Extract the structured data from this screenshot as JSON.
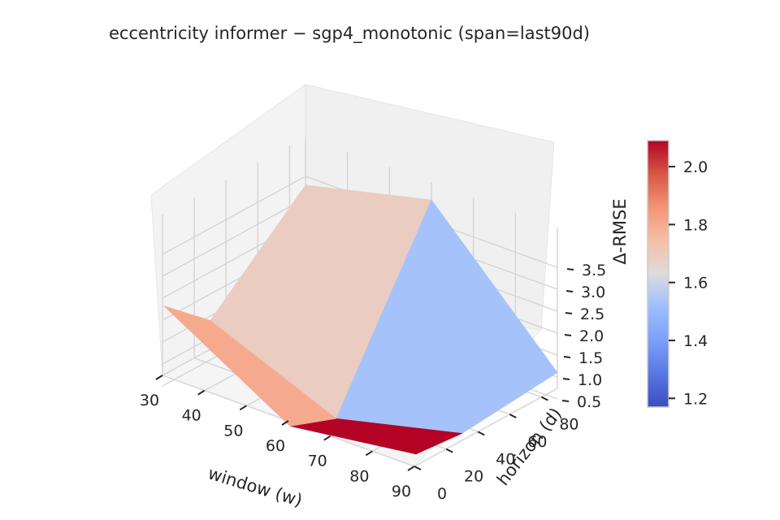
{
  "chart_data": {
    "type": "surface",
    "title": "eccentricity  informer − sgp4_monotonic  (span=last90d)",
    "xlabel": "window (w)",
    "ylabel": "horizon (d)",
    "zlabel": "Δ-RMSE",
    "x_ticks": [
      "30",
      "40",
      "50",
      "60",
      "70",
      "80",
      "90"
    ],
    "y_ticks": [
      "0",
      "20",
      "40",
      "60",
      "80"
    ],
    "z_ticks": [
      "0.5",
      "1.0",
      "1.5",
      "2.0",
      "2.5",
      "3.0",
      "3.5"
    ],
    "colorbar_ticks": [
      "1.2",
      "1.4",
      "1.6",
      "1.8",
      "2.0"
    ],
    "colormap": "coolwarm",
    "colorbar_range": [
      1.17,
      2.09
    ],
    "x": [
      30,
      60,
      90
    ],
    "y": [
      1,
      30,
      90
    ],
    "z": [
      [
        2.3,
        1.4,
        3.3
      ],
      [
        0.6,
        0.2,
        4.0
      ],
      [
        1.0,
        0.9,
        1.1
      ]
    ],
    "face_values": [
      [
        1.8,
        1.69
      ],
      [
        2.09,
        1.53
      ]
    ],
    "colors": {
      "face_red": "#b40426",
      "face_salmon": "#f7b89c",
      "face_peach": "#edd1c2",
      "face_lightblue": "#c5d6f2",
      "face_orange": "#ea7b60",
      "face_blue": "#4055c8"
    }
  }
}
